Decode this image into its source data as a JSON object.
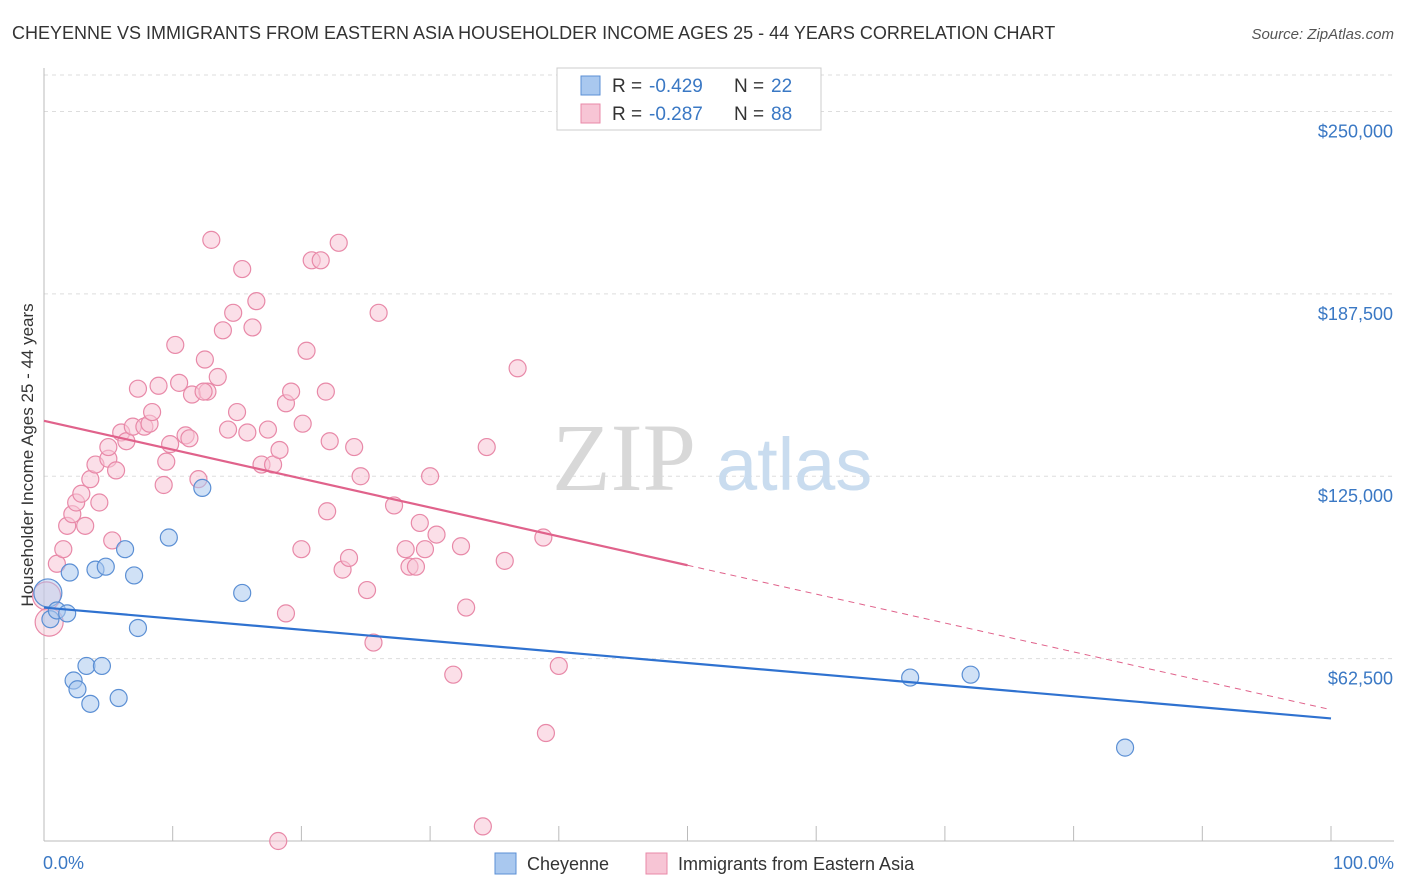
{
  "chart_data": {
    "type": "scatter",
    "title": "CHEYENNE VS IMMIGRANTS FROM EASTERN ASIA HOUSEHOLDER INCOME AGES 25 - 44 YEARS CORRELATION CHART",
    "source": "Source: ZipAtlas.com",
    "xlabel": "",
    "ylabel": "Householder Income Ages 25 - 44 years",
    "xlim": [
      0,
      100
    ],
    "ylim": [
      0,
      262500
    ],
    "x_tick_labels": {
      "left": "0.0%",
      "right": "100.0%"
    },
    "y_ticks": [
      {
        "value": 62500,
        "label": "$62,500"
      },
      {
        "value": 125000,
        "label": "$125,000"
      },
      {
        "value": 187500,
        "label": "$187,500"
      },
      {
        "value": 250000,
        "label": "$250,000"
      }
    ],
    "watermark": {
      "zip": "ZIP",
      "atlas": "atlas"
    },
    "legend": {
      "rows": [
        {
          "r_label": "R =",
          "r_value": "-0.429",
          "n_label": "N =",
          "n_value": "22"
        },
        {
          "r_label": "R =",
          "r_value": "-0.287",
          "n_label": "N =",
          "n_value": "88"
        }
      ]
    },
    "colors": {
      "cheyenne_fill": "#a9c8ef",
      "cheyenne_stroke": "#5b8fd4",
      "cheyenne_line": "#2f72d0",
      "immigrants_fill": "#f7c5d5",
      "immigrants_stroke": "#e889a8",
      "immigrants_line": "#e0628b",
      "grid": "#dddddd",
      "axis": "#bbbbbb"
    },
    "series": [
      {
        "name": "Cheyenne",
        "points": [
          [
            0.3,
            85000
          ],
          [
            0.5,
            76000
          ],
          [
            1.0,
            79000
          ],
          [
            1.8,
            78000
          ],
          [
            2.0,
            92000
          ],
          [
            2.3,
            55000
          ],
          [
            2.6,
            52000
          ],
          [
            3.3,
            60000
          ],
          [
            3.6,
            47000
          ],
          [
            4.0,
            93000
          ],
          [
            4.5,
            60000
          ],
          [
            4.8,
            94000
          ],
          [
            5.8,
            49000
          ],
          [
            6.3,
            100000
          ],
          [
            7.0,
            91000
          ],
          [
            7.3,
            73000
          ],
          [
            9.7,
            104000
          ],
          [
            12.3,
            121000
          ],
          [
            15.4,
            85000
          ],
          [
            67.3,
            56000
          ],
          [
            72.0,
            57000
          ],
          [
            84.0,
            32000
          ]
        ],
        "trend": {
          "x0": 0,
          "y0": 80000,
          "x1": 100,
          "y1": 42000
        }
      },
      {
        "name": "Immigrants from Eastern Asia",
        "points": [
          [
            0.2,
            84000
          ],
          [
            0.4,
            75000
          ],
          [
            1.0,
            95000
          ],
          [
            1.5,
            100000
          ],
          [
            1.8,
            108000
          ],
          [
            2.2,
            112000
          ],
          [
            2.5,
            116000
          ],
          [
            2.9,
            119000
          ],
          [
            3.2,
            108000
          ],
          [
            3.6,
            124000
          ],
          [
            4.0,
            129000
          ],
          [
            4.3,
            116000
          ],
          [
            5.0,
            131000
          ],
          [
            5.3,
            103000
          ],
          [
            5.6,
            127000
          ],
          [
            6.0,
            140000
          ],
          [
            6.4,
            137000
          ],
          [
            6.9,
            142000
          ],
          [
            7.3,
            155000
          ],
          [
            7.8,
            142000
          ],
          [
            8.2,
            143000
          ],
          [
            8.4,
            147000
          ],
          [
            8.9,
            156000
          ],
          [
            9.5,
            130000
          ],
          [
            9.8,
            136000
          ],
          [
            10.2,
            170000
          ],
          [
            10.5,
            157000
          ],
          [
            11.0,
            139000
          ],
          [
            11.5,
            153000
          ],
          [
            12.0,
            124000
          ],
          [
            12.5,
            165000
          ],
          [
            12.7,
            154000
          ],
          [
            13.0,
            206000
          ],
          [
            13.5,
            159000
          ],
          [
            13.9,
            175000
          ],
          [
            14.3,
            141000
          ],
          [
            14.7,
            181000
          ],
          [
            15.0,
            147000
          ],
          [
            15.4,
            196000
          ],
          [
            15.8,
            140000
          ],
          [
            16.2,
            176000
          ],
          [
            16.5,
            185000
          ],
          [
            16.9,
            129000
          ],
          [
            17.4,
            141000
          ],
          [
            17.8,
            129000
          ],
          [
            18.3,
            134000
          ],
          [
            18.8,
            150000
          ],
          [
            19.2,
            154000
          ],
          [
            20.1,
            143000
          ],
          [
            20.4,
            168000
          ],
          [
            20.8,
            199000
          ],
          [
            21.5,
            199000
          ],
          [
            21.9,
            154000
          ],
          [
            22.2,
            137000
          ],
          [
            22.9,
            205000
          ],
          [
            23.2,
            93000
          ],
          [
            23.7,
            97000
          ],
          [
            24.1,
            135000
          ],
          [
            24.6,
            125000
          ],
          [
            25.1,
            86000
          ],
          [
            25.6,
            68000
          ],
          [
            26.0,
            181000
          ],
          [
            27.2,
            115000
          ],
          [
            28.1,
            100000
          ],
          [
            28.4,
            94000
          ],
          [
            28.9,
            94000
          ],
          [
            29.2,
            109000
          ],
          [
            29.6,
            100000
          ],
          [
            30.0,
            125000
          ],
          [
            30.5,
            105000
          ],
          [
            31.8,
            57000
          ],
          [
            32.4,
            101000
          ],
          [
            32.8,
            80000
          ],
          [
            34.4,
            135000
          ],
          [
            35.8,
            96000
          ],
          [
            36.8,
            162000
          ],
          [
            38.8,
            104000
          ],
          [
            18.8,
            78000
          ],
          [
            20.0,
            100000
          ],
          [
            22.0,
            113000
          ],
          [
            12.4,
            154000
          ],
          [
            11.3,
            138000
          ],
          [
            5.0,
            135000
          ],
          [
            9.3,
            122000
          ],
          [
            40.0,
            60000
          ],
          [
            39.0,
            37000
          ],
          [
            34.1,
            5000
          ],
          [
            18.2,
            0
          ]
        ],
        "trend": {
          "x0": 0,
          "y0": 144000,
          "x1": 50,
          "y1": 94500,
          "dash_to_x": 100,
          "dash_to_y": 45000
        }
      }
    ]
  }
}
